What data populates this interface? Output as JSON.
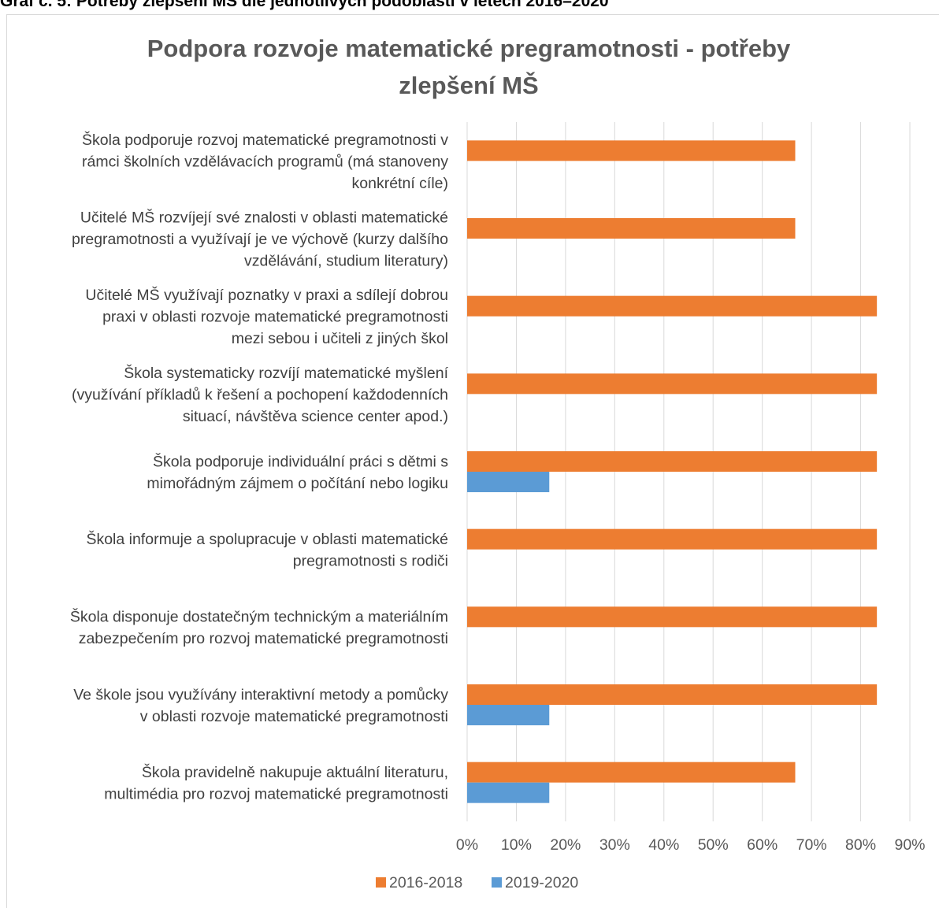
{
  "caption": "Graf č. 5: Potřeby zlepšení MŠ dle jednotlivých podoblastí v letech 2016–2020",
  "colors": {
    "series_2016_2018": "#ed7d31",
    "series_2019_2020": "#5b9bd5",
    "grid": "#d9d9d9",
    "text": "#595959"
  },
  "chart_data": {
    "type": "bar",
    "orientation": "horizontal",
    "title": "Podpora rozvoje matematické pregramotnosti - potřeby zlepšení MŠ",
    "xlabel": "",
    "ylabel": "",
    "xlim": [
      0,
      0.9
    ],
    "x_ticks": [
      "0%",
      "10%",
      "20%",
      "30%",
      "40%",
      "50%",
      "60%",
      "70%",
      "80%",
      "90%"
    ],
    "grid": true,
    "legend_position": "bottom",
    "categories": [
      [
        "Škola podporuje rozvoj matematické pregramotnosti v",
        "rámci školních vzdělávacích programů (má stanoveny",
        "konkrétní cíle)"
      ],
      [
        "Učitelé MŠ rozvíjejí své znalosti v oblasti matematické",
        "pregramotnosti a využívají je ve výchově (kurzy dalšího",
        "vzdělávání, studium literatury)"
      ],
      [
        "Učitelé MŠ využívají poznatky v praxi a sdílejí dobrou",
        "praxi v oblasti rozvoje matematické pregramotnosti",
        "mezi sebou i učiteli z jiných škol"
      ],
      [
        "Škola systematicky rozvíjí matematické myšlení",
        "(využívání příkladů k řešení a pochopení každodenních",
        "situací, návštěva science center apod.)"
      ],
      [
        "Škola podporuje individuální práci s dětmi s",
        "mimořádným zájmem o počítání nebo logiku"
      ],
      [
        "Škola informuje a spolupracuje v oblasti matematické",
        "pregramotnosti s rodiči"
      ],
      [
        "Škola disponuje dostatečným technickým a materiálním",
        "zabezpečením pro rozvoj matematické pregramotnosti"
      ],
      [
        "Ve škole jsou využívány interaktivní metody a pomůcky",
        "v oblasti rozvoje matematické pregramotnosti"
      ],
      [
        "Škola pravidelně nakupuje aktuální literaturu,",
        "multimédia pro rozvoj matematické pregramotnosti"
      ]
    ],
    "series": [
      {
        "name": "2016-2018",
        "values": [
          0.667,
          0.667,
          0.833,
          0.833,
          0.833,
          0.833,
          0.833,
          0.833,
          0.667
        ]
      },
      {
        "name": "2019-2020",
        "values": [
          0,
          0,
          0,
          0,
          0.167,
          0,
          0,
          0.167,
          0.167
        ]
      }
    ]
  }
}
